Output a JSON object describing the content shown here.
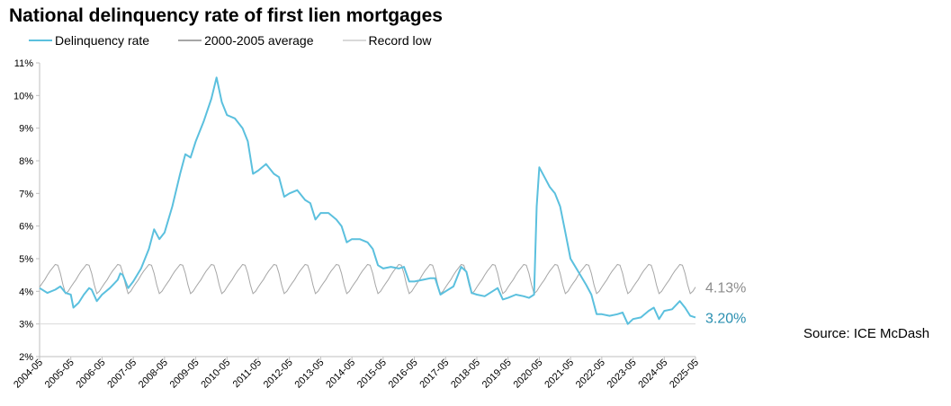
{
  "title": "National delinquency rate of first lien mortgages",
  "source": "Source: ICE McDash",
  "colors": {
    "delinquency": "#5bc0de",
    "average": "#a6a6a6",
    "record_low": "#d9d9d9",
    "axis": "#bfbfbf"
  },
  "chart_data": {
    "type": "line",
    "title": "National delinquency rate of first lien mortgages",
    "xlabel": "",
    "ylabel": "",
    "ylim": [
      2,
      11
    ],
    "y_ticks": [
      "2%",
      "3%",
      "4%",
      "5%",
      "6%",
      "7%",
      "8%",
      "9%",
      "10%",
      "11%"
    ],
    "x_ticks": [
      "2004-05",
      "2005-05",
      "2006-05",
      "2007-05",
      "2008-05",
      "2009-05",
      "2010-05",
      "2011-05",
      "2012-05",
      "2013-05",
      "2014-05",
      "2015-05",
      "2016-05",
      "2017-05",
      "2018-05",
      "2019-05",
      "2020-05",
      "2021-05",
      "2022-05",
      "2023-05",
      "2024-05",
      "2025-05"
    ],
    "x_range": [
      "2004-05",
      "2025-05"
    ],
    "grid": false,
    "legend_position": "top-left",
    "series": [
      {
        "name": "Delinquency rate",
        "color": "#5bc0de",
        "end_label": "3.20%",
        "points": [
          [
            "2004-05",
            4.1
          ],
          [
            "2004-08",
            3.95
          ],
          [
            "2004-11",
            4.05
          ],
          [
            "2005-01",
            4.15
          ],
          [
            "2005-03",
            3.95
          ],
          [
            "2005-05",
            3.9
          ],
          [
            "2005-06",
            3.5
          ],
          [
            "2005-08",
            3.65
          ],
          [
            "2005-10",
            3.9
          ],
          [
            "2005-12",
            4.1
          ],
          [
            "2006-01",
            4.05
          ],
          [
            "2006-03",
            3.7
          ],
          [
            "2006-05",
            3.9
          ],
          [
            "2006-08",
            4.1
          ],
          [
            "2006-11",
            4.35
          ],
          [
            "2006-12",
            4.55
          ],
          [
            "2007-01",
            4.5
          ],
          [
            "2007-03",
            4.1
          ],
          [
            "2007-05",
            4.3
          ],
          [
            "2007-08",
            4.7
          ],
          [
            "2007-11",
            5.3
          ],
          [
            "2008-01",
            5.9
          ],
          [
            "2008-03",
            5.6
          ],
          [
            "2008-05",
            5.8
          ],
          [
            "2008-08",
            6.6
          ],
          [
            "2008-11",
            7.6
          ],
          [
            "2009-01",
            8.2
          ],
          [
            "2009-03",
            8.1
          ],
          [
            "2009-05",
            8.6
          ],
          [
            "2009-08",
            9.2
          ],
          [
            "2009-11",
            9.9
          ],
          [
            "2010-01",
            10.55
          ],
          [
            "2010-03",
            9.8
          ],
          [
            "2010-05",
            9.4
          ],
          [
            "2010-08",
            9.3
          ],
          [
            "2010-11",
            9.0
          ],
          [
            "2011-01",
            8.6
          ],
          [
            "2011-03",
            7.6
          ],
          [
            "2011-05",
            7.7
          ],
          [
            "2011-08",
            7.9
          ],
          [
            "2011-11",
            7.6
          ],
          [
            "2012-01",
            7.5
          ],
          [
            "2012-03",
            6.9
          ],
          [
            "2012-05",
            7.0
          ],
          [
            "2012-08",
            7.1
          ],
          [
            "2012-11",
            6.8
          ],
          [
            "2013-01",
            6.7
          ],
          [
            "2013-03",
            6.2
          ],
          [
            "2013-05",
            6.4
          ],
          [
            "2013-08",
            6.4
          ],
          [
            "2013-11",
            6.2
          ],
          [
            "2014-01",
            6.0
          ],
          [
            "2014-03",
            5.5
          ],
          [
            "2014-05",
            5.6
          ],
          [
            "2014-08",
            5.6
          ],
          [
            "2014-11",
            5.5
          ],
          [
            "2015-01",
            5.3
          ],
          [
            "2015-03",
            4.8
          ],
          [
            "2015-05",
            4.7
          ],
          [
            "2015-08",
            4.75
          ],
          [
            "2015-11",
            4.7
          ],
          [
            "2016-01",
            4.75
          ],
          [
            "2016-03",
            4.3
          ],
          [
            "2016-05",
            4.3
          ],
          [
            "2016-08",
            4.35
          ],
          [
            "2016-11",
            4.4
          ],
          [
            "2017-01",
            4.4
          ],
          [
            "2017-03",
            3.9
          ],
          [
            "2017-05",
            4.0
          ],
          [
            "2017-08",
            4.15
          ],
          [
            "2017-11",
            4.75
          ],
          [
            "2018-01",
            4.6
          ],
          [
            "2018-03",
            3.95
          ],
          [
            "2018-05",
            3.9
          ],
          [
            "2018-08",
            3.85
          ],
          [
            "2018-11",
            4.0
          ],
          [
            "2019-01",
            4.1
          ],
          [
            "2019-03",
            3.75
          ],
          [
            "2019-05",
            3.8
          ],
          [
            "2019-08",
            3.9
          ],
          [
            "2019-11",
            3.85
          ],
          [
            "2020-01",
            3.8
          ],
          [
            "2020-03",
            3.9
          ],
          [
            "2020-04",
            6.6
          ],
          [
            "2020-05",
            7.8
          ],
          [
            "2020-07",
            7.5
          ],
          [
            "2020-09",
            7.2
          ],
          [
            "2020-11",
            7.0
          ],
          [
            "2021-01",
            6.6
          ],
          [
            "2021-03",
            5.8
          ],
          [
            "2021-05",
            5.0
          ],
          [
            "2021-08",
            4.6
          ],
          [
            "2021-11",
            4.2
          ],
          [
            "2022-01",
            3.9
          ],
          [
            "2022-03",
            3.3
          ],
          [
            "2022-05",
            3.3
          ],
          [
            "2022-08",
            3.25
          ],
          [
            "2022-11",
            3.3
          ],
          [
            "2023-01",
            3.35
          ],
          [
            "2023-03",
            3.0
          ],
          [
            "2023-05",
            3.15
          ],
          [
            "2023-08",
            3.2
          ],
          [
            "2023-11",
            3.4
          ],
          [
            "2024-01",
            3.5
          ],
          [
            "2024-03",
            3.15
          ],
          [
            "2024-05",
            3.4
          ],
          [
            "2024-08",
            3.45
          ],
          [
            "2024-11",
            3.7
          ],
          [
            "2025-01",
            3.5
          ],
          [
            "2025-03",
            3.25
          ],
          [
            "2025-05",
            3.2
          ]
        ]
      },
      {
        "name": "2000-2005 average",
        "color": "#a6a6a6",
        "end_label": "4.13%",
        "monthly_pattern_from_may": [
          4.13,
          4.25,
          4.36,
          4.5,
          4.62,
          4.72,
          4.82,
          4.8,
          4.55,
          4.2,
          3.93,
          4.0
        ]
      },
      {
        "name": "Record low",
        "color": "#d9d9d9",
        "value": 3.0
      }
    ]
  }
}
